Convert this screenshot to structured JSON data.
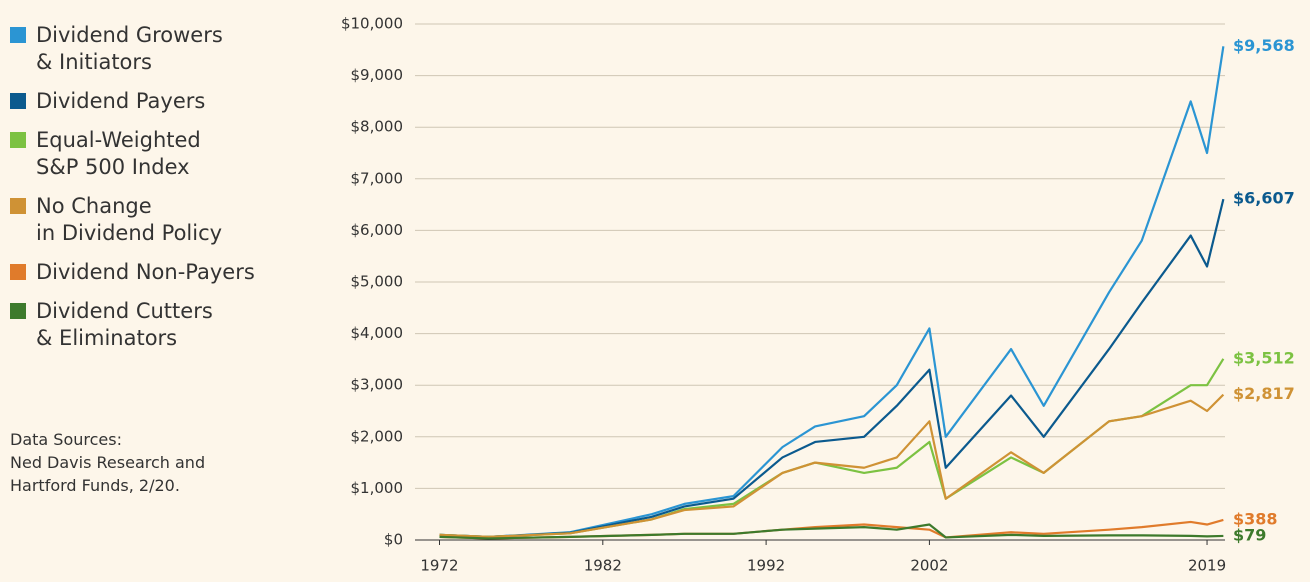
{
  "chart_data": {
    "type": "line",
    "source": "Data Sources:\nNed Davis Research and\nHartford Funds, 2/20.",
    "x": [
      1972,
      1975,
      1980,
      1985,
      1987,
      1990,
      1993,
      1995,
      1998,
      2000,
      2002,
      2003,
      2007,
      2009,
      2013,
      2015,
      2018,
      2019,
      2020
    ],
    "xlim": [
      1970.5,
      2020.1
    ],
    "xticks": [
      1972,
      1982,
      1992,
      2002,
      2019
    ],
    "ylim": [
      0,
      10000
    ],
    "yticks": [
      {
        "value": 0,
        "label": "$0"
      },
      {
        "value": 1000,
        "label": "$1,000"
      },
      {
        "value": 2000,
        "label": "$2,000"
      },
      {
        "value": 3000,
        "label": "$3,000"
      },
      {
        "value": 4000,
        "label": "$4,000"
      },
      {
        "value": 5000,
        "label": "$5,000"
      },
      {
        "value": 6000,
        "label": "$6,000"
      },
      {
        "value": 7000,
        "label": "$7,000"
      },
      {
        "value": 8000,
        "label": "$8,000"
      },
      {
        "value": 9000,
        "label": "$9,000"
      },
      {
        "value": 10000,
        "label": "$10,000"
      }
    ],
    "grid": true,
    "series": [
      {
        "name": "Dividend Growers\n& Initiators",
        "color": "#2b95d3",
        "values": [
          100,
          60,
          150,
          500,
          700,
          850,
          1800,
          2200,
          2400,
          3000,
          4100,
          2000,
          3700,
          2600,
          4800,
          5800,
          8500,
          7500,
          9568
        ],
        "value_labels": [
          null,
          null,
          null,
          null,
          null,
          null,
          null,
          null,
          null,
          null,
          null,
          null,
          null,
          null,
          null,
          null,
          null,
          null,
          "$9,568"
        ]
      },
      {
        "name": "Dividend Payers",
        "color": "#0b5a8e",
        "values": [
          100,
          60,
          140,
          450,
          650,
          800,
          1600,
          1900,
          2000,
          2600,
          3300,
          1400,
          2800,
          2000,
          3700,
          4600,
          5900,
          5300,
          6607
        ],
        "value_labels": [
          null,
          null,
          null,
          null,
          null,
          null,
          null,
          null,
          null,
          null,
          null,
          null,
          null,
          null,
          null,
          null,
          null,
          null,
          "$6,607"
        ]
      },
      {
        "name": "Equal-Weighted\nS&P 500 Index",
        "color": "#7cc242",
        "values": [
          100,
          60,
          130,
          400,
          600,
          700,
          1300,
          1500,
          1300,
          1400,
          1900,
          800,
          1600,
          1300,
          2300,
          2400,
          3000,
          3000,
          3512
        ],
        "value_labels": [
          null,
          null,
          null,
          null,
          null,
          null,
          null,
          null,
          null,
          null,
          null,
          null,
          null,
          null,
          null,
          null,
          null,
          null,
          "$3,512"
        ]
      },
      {
        "name": "No Change\nin Dividend Policy",
        "color": "#cf9235",
        "values": [
          100,
          60,
          130,
          400,
          580,
          650,
          1300,
          1500,
          1400,
          1600,
          2300,
          800,
          1700,
          1300,
          2300,
          2400,
          2700,
          2500,
          2817
        ],
        "value_labels": [
          null,
          null,
          null,
          null,
          null,
          null,
          null,
          null,
          null,
          null,
          null,
          null,
          null,
          null,
          null,
          null,
          null,
          null,
          "$2,817"
        ]
      },
      {
        "name": "Dividend Non-Payers",
        "color": "#e07b2b",
        "values": [
          60,
          30,
          60,
          100,
          120,
          120,
          200,
          250,
          300,
          250,
          200,
          50,
          150,
          120,
          200,
          250,
          350,
          300,
          388
        ],
        "value_labels": [
          null,
          null,
          null,
          null,
          null,
          null,
          null,
          null,
          null,
          null,
          null,
          null,
          null,
          null,
          null,
          null,
          null,
          null,
          "$388"
        ]
      },
      {
        "name": "Dividend Cutters\n& Eliminators",
        "color": "#3d7a2c",
        "values": [
          60,
          30,
          60,
          100,
          120,
          120,
          200,
          220,
          250,
          200,
          300,
          50,
          100,
          80,
          90,
          90,
          80,
          70,
          79
        ],
        "value_labels": [
          null,
          null,
          null,
          null,
          null,
          null,
          null,
          null,
          null,
          null,
          null,
          null,
          null,
          null,
          null,
          null,
          null,
          null,
          "$79"
        ]
      }
    ]
  }
}
